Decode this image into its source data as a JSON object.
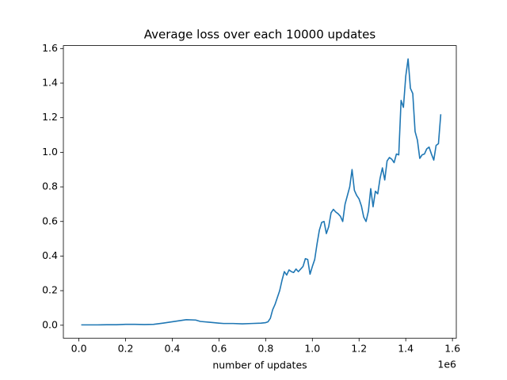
{
  "chart_data": {
    "type": "line",
    "title": "Average loss over each 10000 updates",
    "xlabel": "number of updates",
    "x_offset_text": "1e6",
    "color": "#1f77b4",
    "x": [
      10000,
      40000,
      80000,
      120000,
      160000,
      200000,
      240000,
      280000,
      320000,
      360000,
      400000,
      440000,
      460000,
      500000,
      520000,
      560000,
      600000,
      620000,
      660000,
      700000,
      740000,
      780000,
      800000,
      810000,
      820000,
      830000,
      840000,
      850000,
      860000,
      870000,
      880000,
      890000,
      900000,
      910000,
      920000,
      930000,
      940000,
      950000,
      960000,
      970000,
      980000,
      990000,
      1000000,
      1010000,
      1020000,
      1030000,
      1040000,
      1050000,
      1060000,
      1070000,
      1080000,
      1090000,
      1100000,
      1110000,
      1120000,
      1130000,
      1140000,
      1150000,
      1160000,
      1170000,
      1180000,
      1190000,
      1200000,
      1210000,
      1220000,
      1230000,
      1240000,
      1250000,
      1260000,
      1270000,
      1280000,
      1290000,
      1300000,
      1310000,
      1320000,
      1330000,
      1340000,
      1350000,
      1360000,
      1370000,
      1380000,
      1390000,
      1400000,
      1410000,
      1420000,
      1430000,
      1440000,
      1450000,
      1460000,
      1470000,
      1480000,
      1490000,
      1500000,
      1510000,
      1520000,
      1530000,
      1540000,
      1550000
    ],
    "values": [
      0.002,
      0.002,
      0.002,
      0.003,
      0.003,
      0.005,
      0.005,
      0.004,
      0.005,
      0.012,
      0.02,
      0.028,
      0.032,
      0.03,
      0.022,
      0.017,
      0.012,
      0.01,
      0.01,
      0.008,
      0.01,
      0.012,
      0.015,
      0.02,
      0.04,
      0.09,
      0.12,
      0.16,
      0.2,
      0.26,
      0.31,
      0.29,
      0.32,
      0.31,
      0.305,
      0.325,
      0.31,
      0.325,
      0.34,
      0.385,
      0.38,
      0.295,
      0.34,
      0.38,
      0.47,
      0.55,
      0.595,
      0.6,
      0.53,
      0.57,
      0.65,
      0.67,
      0.655,
      0.645,
      0.63,
      0.6,
      0.7,
      0.75,
      0.8,
      0.9,
      0.78,
      0.75,
      0.73,
      0.69,
      0.625,
      0.6,
      0.66,
      0.79,
      0.685,
      0.775,
      0.76,
      0.85,
      0.91,
      0.84,
      0.95,
      0.97,
      0.96,
      0.94,
      0.99,
      0.985,
      1.3,
      1.26,
      1.44,
      1.54,
      1.37,
      1.34,
      1.12,
      1.07,
      0.965,
      0.985,
      0.99,
      1.02,
      1.03,
      0.99,
      0.955,
      1.04,
      1.05,
      1.22
    ],
    "xlim": [
      -66500,
      1616500
    ],
    "ylim": [
      -0.075,
      1.617
    ],
    "xticks": [
      {
        "value": 0,
        "label": "0.0"
      },
      {
        "value": 200000,
        "label": "0.2"
      },
      {
        "value": 400000,
        "label": "0.4"
      },
      {
        "value": 600000,
        "label": "0.6"
      },
      {
        "value": 800000,
        "label": "0.8"
      },
      {
        "value": 1000000,
        "label": "1.0"
      },
      {
        "value": 1200000,
        "label": "1.2"
      },
      {
        "value": 1400000,
        "label": "1.4"
      },
      {
        "value": 1600000,
        "label": "1.6"
      }
    ],
    "yticks": [
      {
        "value": 0,
        "label": "0.0"
      },
      0.2,
      0.4,
      0.6,
      0.8,
      {
        "value": 1,
        "label": "1.0"
      },
      1.2,
      1.4,
      1.6
    ],
    "grid": false
  }
}
